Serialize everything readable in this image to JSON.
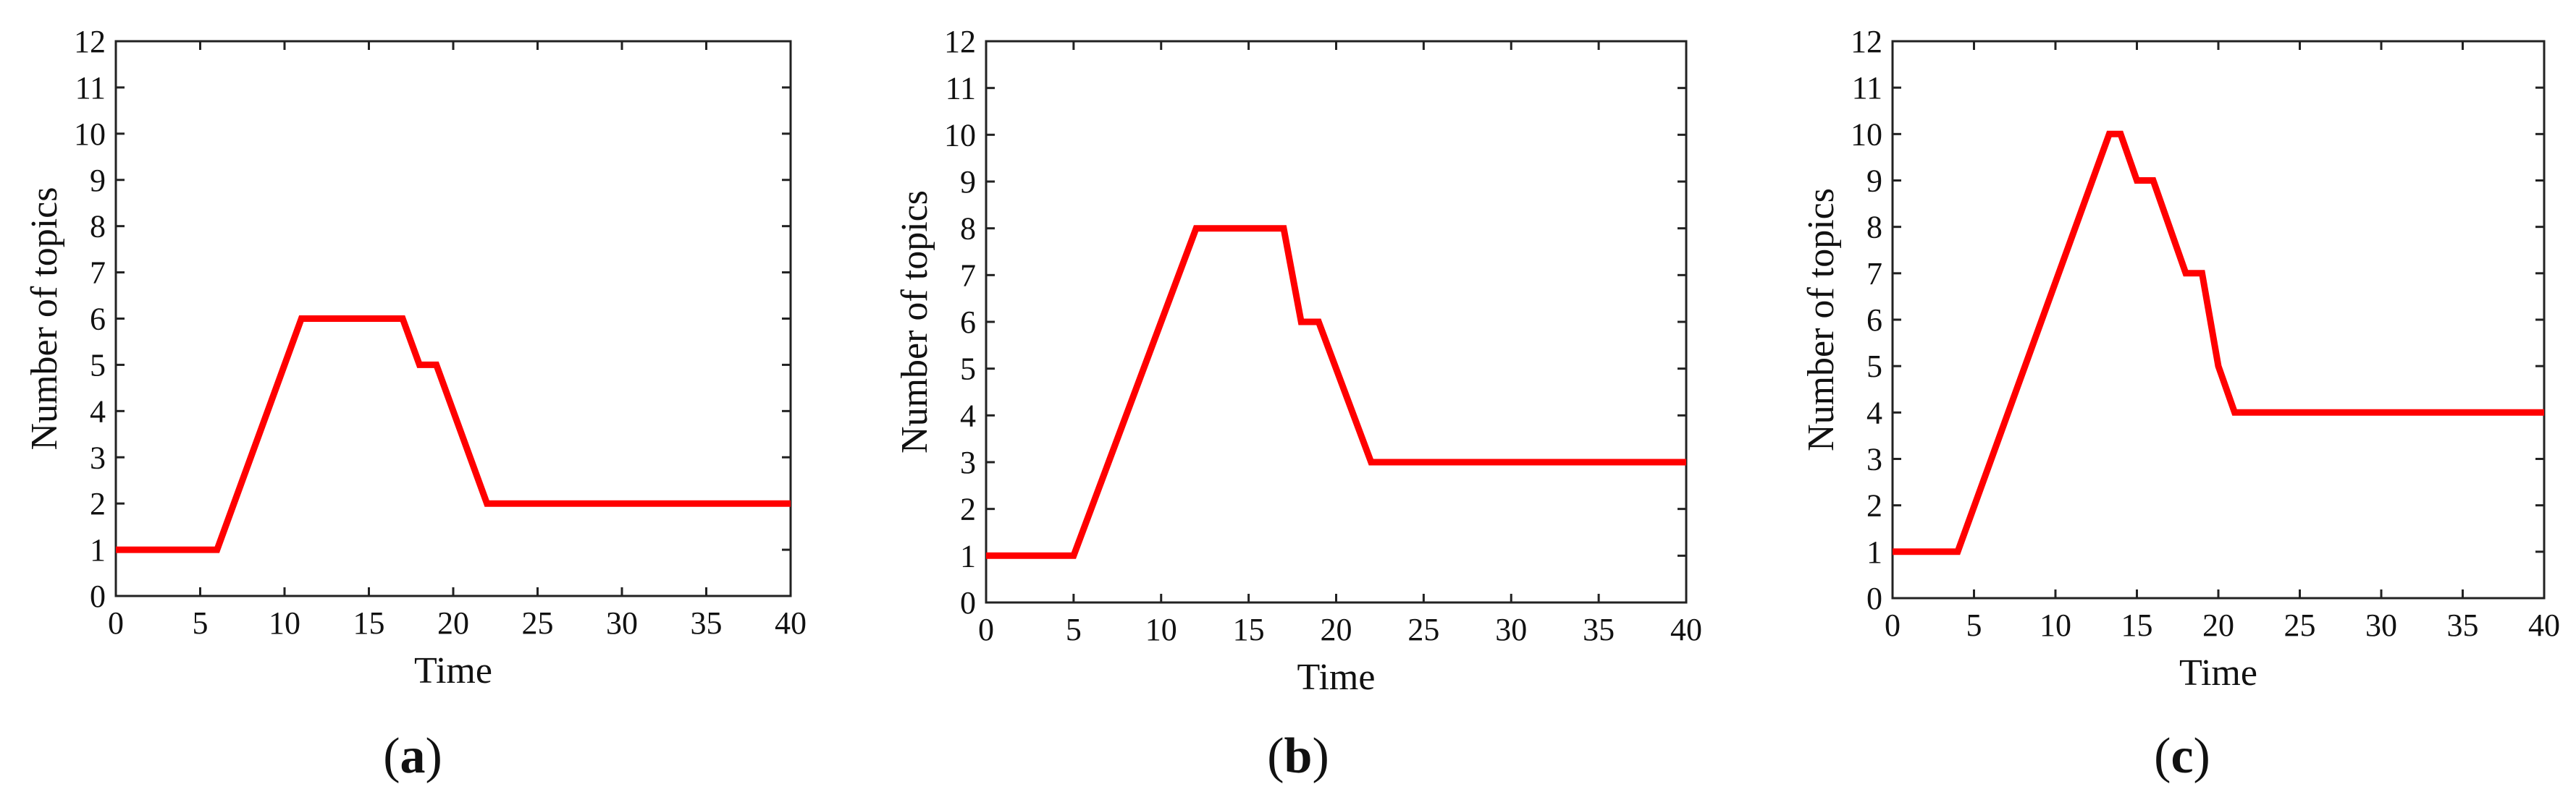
{
  "chart_data": [
    {
      "type": "line",
      "panel_label": "a",
      "xlabel": "Time",
      "ylabel": "Number of topics",
      "xlim": [
        0,
        40
      ],
      "ylim": [
        0,
        12
      ],
      "xticks": [
        0,
        5,
        10,
        15,
        20,
        25,
        30,
        35,
        40
      ],
      "yticks": [
        0,
        1,
        2,
        3,
        4,
        5,
        6,
        7,
        8,
        9,
        10,
        11,
        12
      ],
      "grid": false,
      "series": [
        {
          "color": "#ff0000",
          "x": [
            0,
            6,
            11,
            17,
            18,
            19,
            22,
            40
          ],
          "y": [
            1,
            1,
            6,
            6,
            5,
            5,
            2,
            2
          ]
        }
      ]
    },
    {
      "type": "line",
      "panel_label": "b",
      "xlabel": "Time",
      "ylabel": "Number of topics",
      "xlim": [
        0,
        40
      ],
      "ylim": [
        0,
        12
      ],
      "xticks": [
        0,
        5,
        10,
        15,
        20,
        25,
        30,
        35,
        40
      ],
      "yticks": [
        0,
        1,
        2,
        3,
        4,
        5,
        6,
        7,
        8,
        9,
        10,
        11,
        12
      ],
      "grid": false,
      "series": [
        {
          "color": "#ff0000",
          "x": [
            0,
            5,
            12,
            17,
            18,
            19,
            22,
            40
          ],
          "y": [
            1,
            1,
            8,
            8,
            6,
            6,
            3,
            3
          ]
        }
      ]
    },
    {
      "type": "line",
      "panel_label": "c",
      "xlabel": "Time",
      "ylabel": "Number of topics",
      "xlim": [
        0,
        40
      ],
      "ylim": [
        0,
        12
      ],
      "xticks": [
        0,
        5,
        10,
        15,
        20,
        25,
        30,
        35,
        40
      ],
      "yticks": [
        0,
        1,
        2,
        3,
        4,
        5,
        6,
        7,
        8,
        9,
        10,
        11,
        12
      ],
      "grid": false,
      "series": [
        {
          "color": "#ff0000",
          "x": [
            0,
            4,
            13.3,
            14,
            15,
            16,
            18,
            19,
            20,
            21,
            40
          ],
          "y": [
            1,
            1,
            10,
            10,
            9,
            9,
            7,
            7,
            5,
            4,
            4
          ]
        }
      ]
    }
  ]
}
